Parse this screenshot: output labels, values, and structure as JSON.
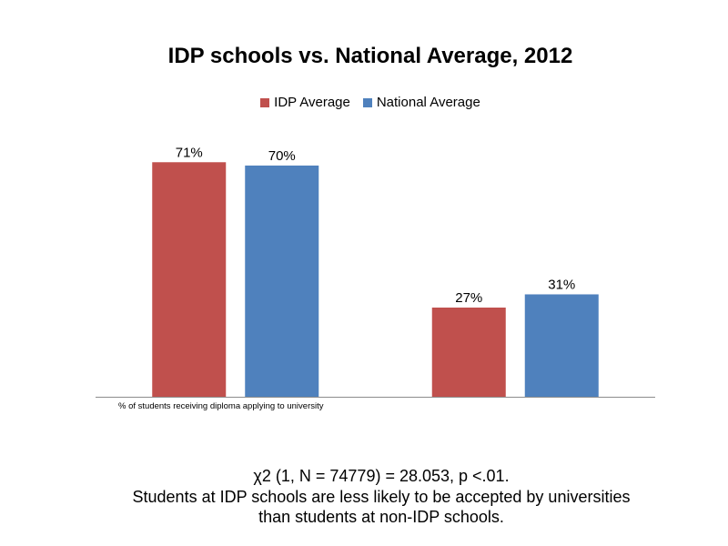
{
  "chart_data": {
    "type": "bar",
    "title": "IDP schools vs. National Average, 2012",
    "categories": [
      "% of students receiving diploma applying to university",
      ""
    ],
    "series": [
      {
        "name": "IDP Average",
        "values": [
          71,
          27
        ],
        "labels": [
          "71%",
          "27%"
        ],
        "color": "#C0504D"
      },
      {
        "name": "National Average",
        "values": [
          70,
          31
        ],
        "labels": [
          "70%",
          "31%"
        ],
        "color": "#4F81BD"
      }
    ],
    "xlabel": "",
    "ylabel": "",
    "ylim": [
      0,
      80
    ],
    "grid": false,
    "legend_position": "top"
  },
  "footnote": {
    "stat_line": "χ2 (1, N = 74779) = 28.053, p <.01.",
    "line2": "Students at IDP schools are less likely to be accepted by universities",
    "line3": "than students at non-IDP schools."
  }
}
